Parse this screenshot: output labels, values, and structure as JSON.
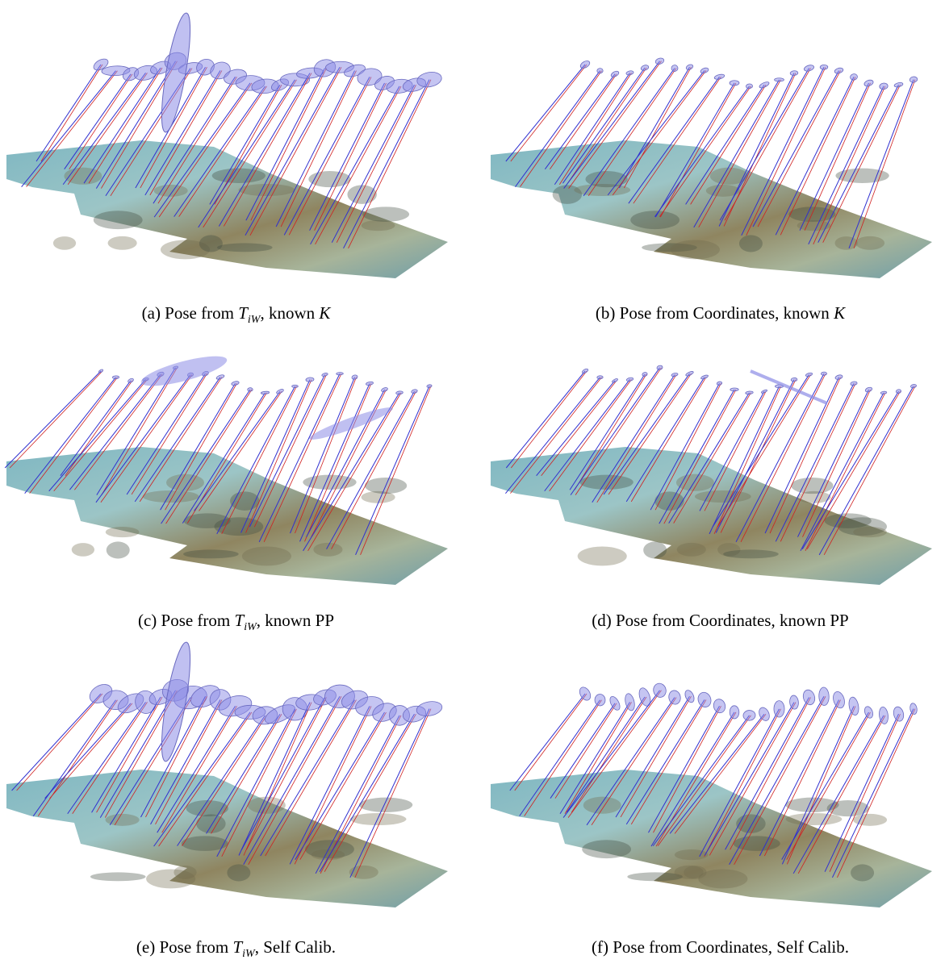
{
  "figure": {
    "panels": [
      {
        "caption": [
          "(a) Pose from ",
          "T",
          "iW",
          ", known ",
          "K"
        ]
      },
      {
        "caption": [
          "(b) Pose from Coordinates, known ",
          "K"
        ]
      },
      {
        "caption": [
          "(c) Pose from ",
          "T",
          "iW",
          ", known PP"
        ]
      },
      {
        "caption": [
          "(d) Pose from Coordinates, known PP"
        ]
      },
      {
        "caption": [
          "(e) Pose from ",
          "T",
          "iW",
          ", Self Calib."
        ]
      },
      {
        "caption": [
          "(f) Pose from Coordinates, Self Calib."
        ]
      }
    ]
  }
}
